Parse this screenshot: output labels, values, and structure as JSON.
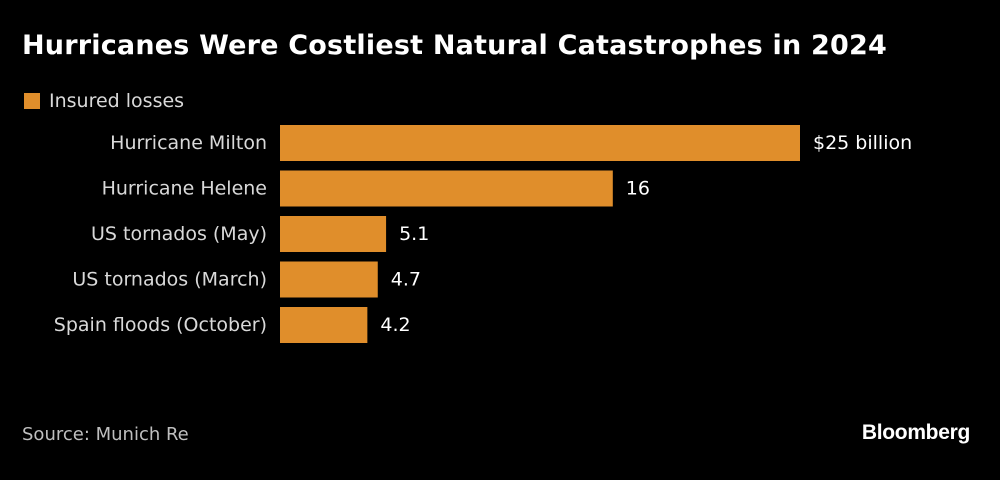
{
  "colors": {
    "background": "#000000",
    "bar": "#e08e2b",
    "text": "#ffffff",
    "muted_text": "#d9d9d9"
  },
  "source": "Source: Munich Re",
  "brand": "Bloomberg",
  "chart_data": {
    "type": "bar",
    "orientation": "horizontal",
    "title": "Hurricanes Were Costliest Natural Catastrophes in 2024",
    "legend": "top-left",
    "grid": false,
    "categories": [
      "Hurricane Milton",
      "Hurricane Helene",
      "US tornados (May)",
      "US tornados (March)",
      "Spain floods (October)"
    ],
    "series": [
      {
        "name": "Insured losses",
        "values": [
          25,
          16,
          5.1,
          4.7,
          4.2
        ],
        "value_labels": [
          "$25 billion",
          "16",
          "5.1",
          "4.7",
          "4.2"
        ]
      }
    ],
    "xlim": [
      0,
      25
    ]
  }
}
